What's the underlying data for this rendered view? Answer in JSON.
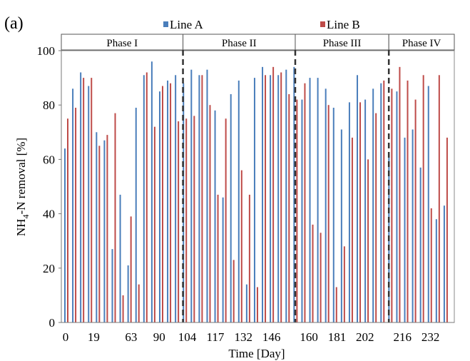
{
  "chart_data": {
    "type": "bar",
    "panel_label": "(a)",
    "xlabel": "Time [Day]",
    "ylabel_main": "NH",
    "ylabel_sub": "4",
    "ylabel_rest": "-N removal [%]",
    "ylim": [
      0,
      100
    ],
    "yticks": [
      "0",
      "20",
      "40",
      "60",
      "80",
      "100"
    ],
    "grid": false,
    "legend_position": "top-center",
    "x_tick_labels": [
      {
        "label": "0",
        "index": 0
      },
      {
        "label": "19",
        "index": 3
      },
      {
        "label": "63",
        "index": 7
      },
      {
        "label": "90",
        "index": 10
      },
      {
        "label": "104",
        "index": 13
      },
      {
        "label": "117",
        "index": 16
      },
      {
        "label": "132",
        "index": 19
      },
      {
        "label": "146",
        "index": 22
      },
      {
        "label": "160",
        "index": 26
      },
      {
        "label": "181",
        "index": 29
      },
      {
        "label": "202",
        "index": 32
      },
      {
        "label": "216",
        "index": 36
      },
      {
        "label": "232",
        "index": 39
      }
    ],
    "phases": [
      {
        "label": "Phase I",
        "start": 0,
        "end": 13
      },
      {
        "label": "Phase II",
        "start": 13,
        "end": 25
      },
      {
        "label": "Phase III",
        "start": 25,
        "end": 35
      },
      {
        "label": "Phase IV",
        "start": 35,
        "end": 42
      }
    ],
    "series": [
      {
        "name": "Line A",
        "color": "#4a7ebb",
        "values": [
          64,
          86,
          92,
          87,
          70,
          67,
          27,
          47,
          21,
          79,
          91,
          96,
          85,
          89,
          91,
          88,
          93,
          91,
          93,
          78,
          46,
          84,
          89,
          14,
          90,
          94,
          91,
          91,
          93,
          94,
          82,
          90,
          90,
          86,
          79,
          71,
          81,
          91,
          82,
          86,
          88,
          62,
          85,
          68,
          71,
          57,
          87,
          38,
          43
        ]
      },
      {
        "name": "Line B",
        "color": "#be4b48",
        "values": [
          75,
          79,
          90,
          90,
          65,
          69,
          77,
          10,
          39,
          14,
          92,
          72,
          87,
          88,
          74,
          75,
          76,
          91,
          80,
          47,
          75,
          23,
          56,
          47,
          13,
          91,
          94,
          92,
          84,
          82,
          88,
          36,
          33,
          80,
          13,
          28,
          68,
          81,
          60,
          77,
          89,
          86,
          94,
          89,
          82,
          91,
          42,
          91,
          68
        ]
      }
    ]
  }
}
